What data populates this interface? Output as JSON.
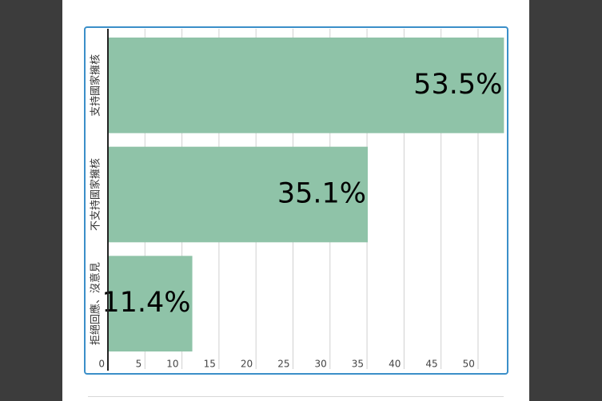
{
  "chart_data": {
    "type": "barh",
    "categories": [
      "支持國家擁核",
      "不支持國家擁核",
      "拒絕回應、沒意見"
    ],
    "values": [
      53.5,
      35.1,
      11.4
    ],
    "value_labels": [
      "53.5%",
      "35.1%",
      "11.4%"
    ],
    "color": "#8fc3a8",
    "xlim": [
      0,
      54
    ],
    "xticks": [
      0,
      5,
      10,
      15,
      20,
      25,
      30,
      35,
      40,
      45,
      50
    ],
    "grid": true
  }
}
